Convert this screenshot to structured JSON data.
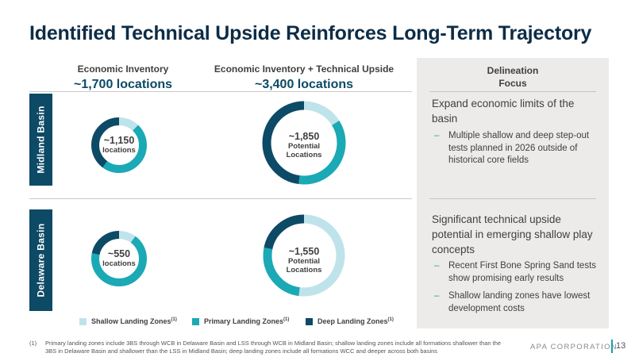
{
  "title": "Identified Technical Upside Reinforces Long-Term Trajectory",
  "columns": [
    {
      "subtitle": "Economic Inventory",
      "headline": "~1,700 locations"
    },
    {
      "subtitle": "Economic Inventory + Technical Upside",
      "headline": "~3,400  locations"
    }
  ],
  "rows": [
    "Midland Basin",
    "Delaware Basin"
  ],
  "colors": {
    "shallow": "#bfe3ea",
    "primary": "#1aa9b5",
    "deep": "#0d4a66"
  },
  "chart_data": {
    "type": "pie",
    "variant": "donut",
    "legend": [
      {
        "key": "shallow",
        "label": "Shallow Landing Zones",
        "note": "(1)"
      },
      {
        "key": "primary",
        "label": "Primary Landing Zones",
        "note": "(1)"
      },
      {
        "key": "deep",
        "label": "Deep Landing Zones",
        "note": "(1)"
      }
    ],
    "donuts": [
      {
        "basin": "Midland Basin",
        "column": "Economic Inventory",
        "value_label": "~1,150",
        "unit_label": "locations",
        "shares": {
          "shallow": 0.12,
          "primary": 0.48,
          "deep": 0.4
        }
      },
      {
        "basin": "Midland Basin",
        "column": "Economic Inventory + Technical Upside",
        "value_label": "~1,850",
        "unit_label": "Potential Locations",
        "shares": {
          "shallow": 0.16,
          "primary": 0.36,
          "deep": 0.48
        }
      },
      {
        "basin": "Delaware Basin",
        "column": "Economic Inventory",
        "value_label": "~550",
        "unit_label": "locations",
        "shares": {
          "shallow": 0.1,
          "primary": 0.68,
          "deep": 0.22
        }
      },
      {
        "basin": "Delaware Basin",
        "column": "Economic Inventory + Technical Upside",
        "value_label": "~1,550",
        "unit_label": "Potential Locations",
        "shares": {
          "shallow": 0.52,
          "primary": 0.26,
          "deep": 0.22
        }
      }
    ]
  },
  "panel": {
    "heading_line1": "Delineation",
    "heading_line2": "Focus",
    "sections": [
      {
        "main": "Expand economic limits of the basin",
        "bullets": [
          "Multiple shallow and deep step-out tests planned in 2026 outside of historical core fields"
        ]
      },
      {
        "main": "Significant technical upside potential in emerging shallow play concepts",
        "bullets": [
          "Recent First Bone Spring Sand tests show promising early results",
          "Shallow landing zones have lowest development costs"
        ]
      }
    ]
  },
  "footnote": {
    "number": "(1)",
    "text": "Primary landing zones include 3BS through WCB in Delaware Basin and LSS through WCB in Midland Basin; shallow landing zones include all formations shallower than the 3BS in Delaware Basin and shallower than the LSS in Midland Basin; deep landing zones include all formations WCC and deeper across both basins"
  },
  "brand": "APA CORPORATION",
  "page_number": "13"
}
